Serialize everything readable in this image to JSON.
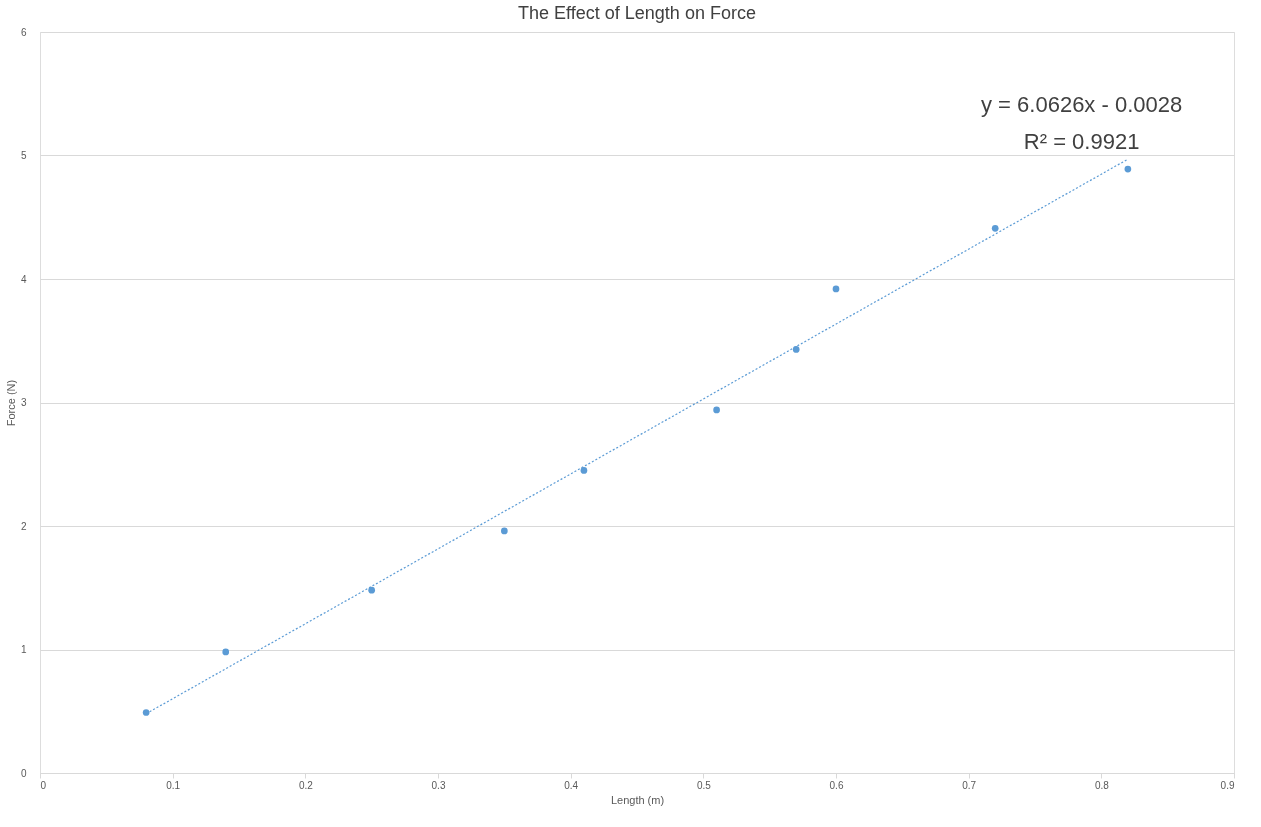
{
  "chart_data": {
    "type": "scatter",
    "title": "The Effect of Length on Force",
    "xlabel": "Length (m)",
    "ylabel": "Force (N)",
    "x": [
      0.08,
      0.14,
      0.25,
      0.35,
      0.41,
      0.51,
      0.57,
      0.6,
      0.72,
      0.82
    ],
    "series": [
      {
        "color": "#5b9bd5",
        "marker": "circle",
        "values": [
          0.49,
          0.98,
          1.48,
          1.96,
          2.45,
          2.94,
          3.43,
          3.92,
          4.41,
          4.89
        ]
      },
      {
        "type": "line",
        "color": "#5b9bd5",
        "line_style": "dotted",
        "marker": "none",
        "x": [
          0.08,
          0.82
        ],
        "values": [
          0.48,
          4.97
        ]
      }
    ],
    "annotations": [
      "y = 6.0626x - 0.0028",
      "R² = 0.9921"
    ],
    "xlim": [
      0,
      0.9
    ],
    "xticks": [
      0,
      0.1,
      0.2,
      0.3,
      0.4,
      0.5,
      0.6,
      0.7,
      0.8,
      0.9
    ],
    "ylim": [
      0,
      6
    ],
    "yticks": [
      0,
      1,
      2,
      3,
      4,
      5,
      6
    ],
    "grid": "y",
    "legend": false
  }
}
